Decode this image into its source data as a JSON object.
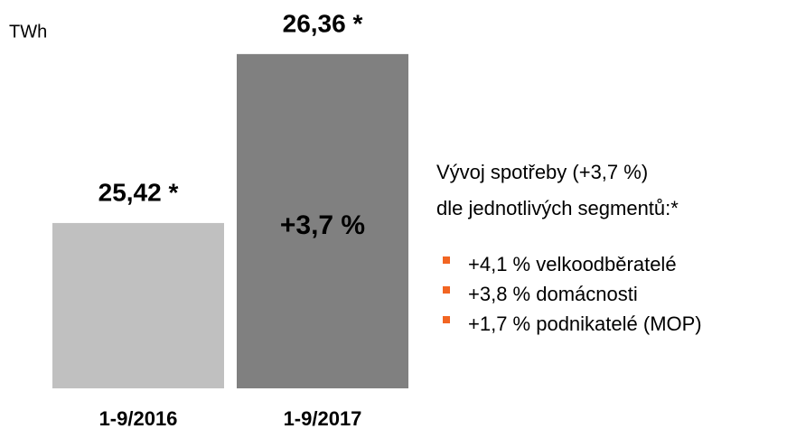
{
  "chart_data": {
    "type": "bar",
    "unit": "TWh",
    "categories": [
      "1-9/2016",
      "1-9/2017"
    ],
    "values": [
      25.42,
      26.36
    ],
    "value_labels": [
      "25,42 *",
      "26,36 *"
    ],
    "colors": [
      "#c0c0c0",
      "#808080"
    ],
    "ylim": [
      24.5,
      26.5
    ],
    "annotation": "+3,7 %",
    "note": {
      "title": [
        "Vývoj spotřeby (+3,7 %)",
        "dle jednotlivých segmentů:*"
      ],
      "bullet_color": "#f26522",
      "items": [
        "+4,1 % velkoodběratelé",
        "+3,8 % domácnosti",
        "+1,7 % podnikatelé (MOP)"
      ]
    }
  }
}
